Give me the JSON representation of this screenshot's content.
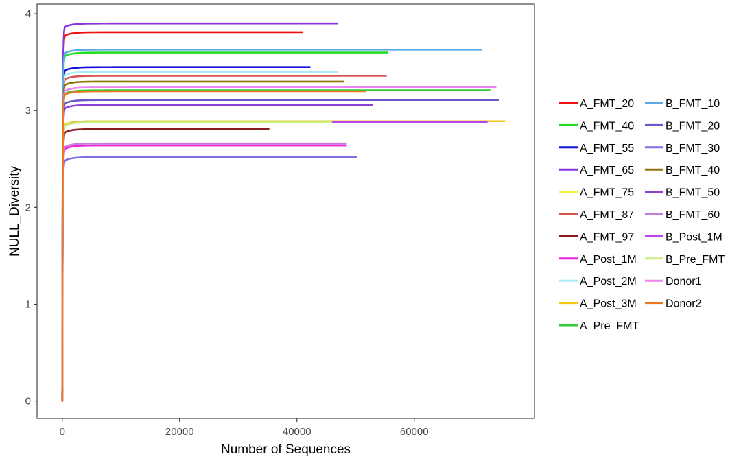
{
  "chart_data": {
    "type": "line",
    "xlabel": "Number of Sequences",
    "ylabel": "NULL_Diversity",
    "xlim": [
      -4300,
      80500
    ],
    "ylim": [
      -0.18,
      4.1
    ],
    "xticks": [
      0,
      20000,
      40000,
      60000
    ],
    "xtick_labels": [
      "0",
      "20000",
      "40000",
      "60000"
    ],
    "yticks": [
      0,
      1,
      2,
      3,
      4
    ],
    "ytick_labels": [
      "0",
      "1",
      "2",
      "3",
      "4"
    ],
    "grid": false,
    "legend_position": "right",
    "legend_columns": 2,
    "series": [
      {
        "name": "A_FMT_20",
        "color": "#ee1111",
        "max_x": 41000,
        "plateau": 3.81
      },
      {
        "name": "A_FMT_40",
        "color": "#22dd22",
        "max_x": 55500,
        "plateau": 3.6
      },
      {
        "name": "A_FMT_55",
        "color": "#1111dd",
        "max_x": 42300,
        "plateau": 3.45
      },
      {
        "name": "A_FMT_65",
        "color": "#8833dd",
        "max_x": 47000,
        "plateau": 3.9
      },
      {
        "name": "A_FMT_75",
        "color": "#f5f040",
        "max_x": 72500,
        "plateau": 2.89
      },
      {
        "name": "A_FMT_87",
        "color": "#d9534f",
        "max_x": 55300,
        "plateau": 3.36
      },
      {
        "name": "A_FMT_97",
        "color": "#8b1a1a",
        "max_x": 35300,
        "plateau": 2.81
      },
      {
        "name": "A_Post_1M",
        "color": "#ee22dd",
        "max_x": 48500,
        "plateau": 2.64
      },
      {
        "name": "A_Post_2M",
        "color": "#a8eaf5",
        "max_x": 47000,
        "plateau": 3.4
      },
      {
        "name": "A_Post_3M",
        "color": "#f5c518",
        "max_x": 75500,
        "plateau": 2.89
      },
      {
        "name": "A_Pre_FMT",
        "color": "#33cc33",
        "max_x": 73000,
        "plateau": 3.21
      },
      {
        "name": "B_FMT_10",
        "color": "#5ca9e6",
        "max_x": 71500,
        "plateau": 3.63
      },
      {
        "name": "B_FMT_20",
        "color": "#6a5acd",
        "max_x": 74500,
        "plateau": 3.11
      },
      {
        "name": "B_FMT_30",
        "color": "#7f6fe0",
        "max_x": 50200,
        "plateau": 2.52
      },
      {
        "name": "B_FMT_40",
        "color": "#8b7508",
        "max_x": 48000,
        "plateau": 3.3
      },
      {
        "name": "B_FMT_50",
        "color": "#8a3fd8",
        "max_x": 53000,
        "plateau": 3.06
      },
      {
        "name": "B_FMT_60",
        "color": "#c77ad9",
        "max_x": 48500,
        "plateau": 2.66
      },
      {
        "name": "B_Post_1M",
        "color": "#bb44ee",
        "max_x": 72500,
        "plateau": 2.88
      },
      {
        "name": "B_Pre_FMT",
        "color": "#c8ee80",
        "max_x": 46000,
        "plateau": 2.88
      },
      {
        "name": "Donor1",
        "color": "#ee82ee",
        "max_x": 74000,
        "plateau": 3.24
      },
      {
        "name": "Donor2",
        "color": "#ee7722",
        "max_x": 51700,
        "plateau": 3.2
      }
    ]
  }
}
